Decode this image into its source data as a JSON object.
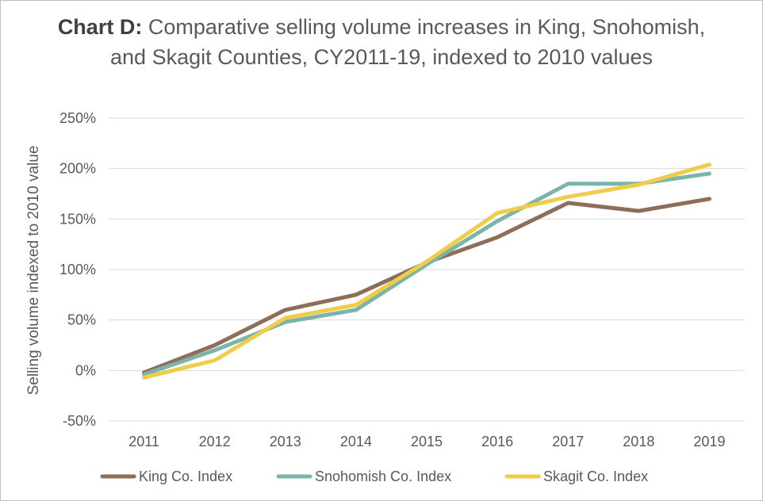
{
  "chart_data": {
    "type": "line",
    "title_bold": "Chart D:",
    "title": "Comparative selling volume increases in King, Snohomish, and Skagit Counties, CY2011-19, indexed to 2010 values",
    "ylabel": "Selling volume indexed to 2010 value",
    "xlabel": "",
    "x": [
      "2011",
      "2012",
      "2013",
      "2014",
      "2015",
      "2016",
      "2017",
      "2018",
      "2019"
    ],
    "ylim": [
      -50,
      250
    ],
    "yticks": [
      250,
      200,
      150,
      100,
      50,
      0,
      -50
    ],
    "ytick_labels": [
      "250%",
      "200%",
      "150%",
      "100%",
      "50%",
      "0%",
      "-50%"
    ],
    "y_unit": "percent",
    "grid": true,
    "legend_position": "bottom",
    "series": [
      {
        "name": "King Co. Index",
        "color": "#8c6e5a",
        "values": [
          -2,
          25,
          60,
          75,
          107,
          132,
          166,
          158,
          170
        ]
      },
      {
        "name": "Snohomish Co. Index",
        "color": "#7bb4aa",
        "values": [
          -4,
          20,
          48,
          60,
          105,
          148,
          185,
          185,
          195
        ]
      },
      {
        "name": "Skagit Co. Index",
        "color": "#efcd4a",
        "values": [
          -7,
          10,
          52,
          65,
          108,
          156,
          172,
          184,
          204
        ]
      }
    ]
  }
}
